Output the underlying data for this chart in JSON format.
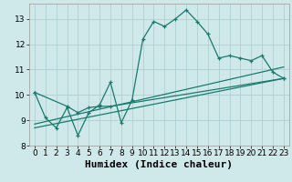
{
  "xlabel": "Humidex (Indice chaleur)",
  "bg_color": "#cfe8ea",
  "grid_color": "#b0cfd2",
  "line_color": "#1a7a6e",
  "xlim": [
    -0.5,
    23.5
  ],
  "ylim": [
    8.0,
    13.6
  ],
  "yticks": [
    8,
    9,
    10,
    11,
    12,
    13
  ],
  "xticks": [
    0,
    1,
    2,
    3,
    4,
    5,
    6,
    7,
    8,
    9,
    10,
    11,
    12,
    13,
    14,
    15,
    16,
    17,
    18,
    19,
    20,
    21,
    22,
    23
  ],
  "line1_x": [
    0,
    1,
    2,
    3,
    4,
    5,
    6,
    7,
    8,
    9,
    10,
    11,
    12,
    13,
    14,
    15,
    16,
    17,
    18,
    19,
    20,
    21,
    22,
    23
  ],
  "line1_y": [
    10.1,
    9.1,
    8.7,
    9.5,
    8.4,
    9.3,
    9.6,
    10.5,
    8.9,
    9.8,
    12.2,
    12.9,
    12.7,
    13.0,
    13.35,
    12.9,
    12.4,
    11.45,
    11.55,
    11.45,
    11.35,
    11.55,
    10.9,
    10.65
  ],
  "line2_x": [
    0,
    3,
    4,
    5,
    6,
    7,
    23
  ],
  "line2_y": [
    10.1,
    9.55,
    9.3,
    9.5,
    9.55,
    9.55,
    10.65
  ],
  "line3_x": [
    0,
    23
  ],
  "line3_y": [
    8.85,
    11.1
  ],
  "line4_x": [
    0,
    23
  ],
  "line4_y": [
    8.7,
    10.65
  ],
  "font_size_label": 8,
  "tick_font_size": 6.5
}
